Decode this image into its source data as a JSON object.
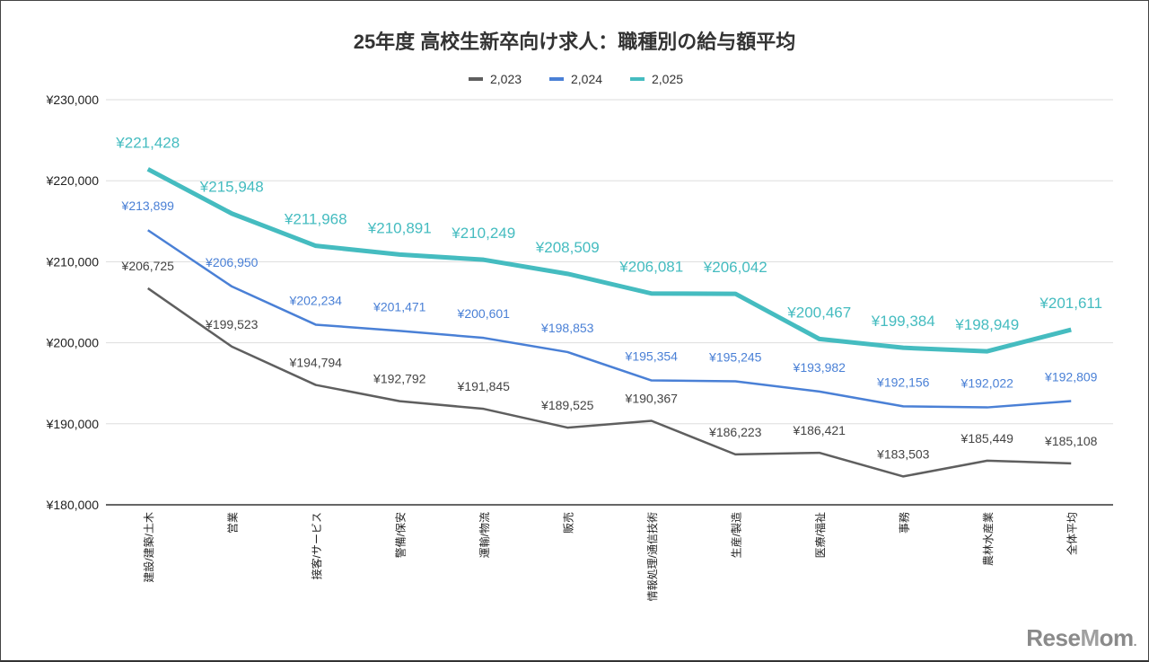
{
  "chart_data": {
    "type": "line",
    "title": "25年度 高校生新卒向け求人：職種別の給与額平均",
    "categories": [
      "建設/建築/土木",
      "営業",
      "接客/サービス",
      "警備/保安",
      "運輸/物流",
      "販売",
      "情報処理/通信技術",
      "生産/製造",
      "医療/福祉",
      "事務",
      "農林水産業",
      "全体平均"
    ],
    "series": [
      {
        "name": "2,023",
        "color": "#5f5f5f",
        "values": [
          206725,
          199523,
          194794,
          192792,
          191845,
          189525,
          190367,
          186223,
          186421,
          183503,
          185449,
          185108
        ]
      },
      {
        "name": "2,024",
        "color": "#4a80d6",
        "values": [
          213899,
          206950,
          202234,
          201471,
          200601,
          198853,
          195354,
          195245,
          193982,
          192156,
          192022,
          192809
        ]
      },
      {
        "name": "2,025",
        "color": "#45bcc0",
        "values": [
          221428,
          215948,
          211968,
          210891,
          210249,
          208509,
          206081,
          206042,
          200467,
          199384,
          198949,
          201611
        ]
      }
    ],
    "ylim": [
      180000,
      230000
    ],
    "yticks": [
      180000,
      190000,
      200000,
      210000,
      220000,
      230000
    ],
    "ytick_labels": [
      "¥180,000",
      "¥190,000",
      "¥200,000",
      "¥210,000",
      "¥220,000",
      "¥230,000"
    ],
    "value_prefix": "¥",
    "legend_position": "top",
    "grid": true
  },
  "watermark": "ReseMom"
}
